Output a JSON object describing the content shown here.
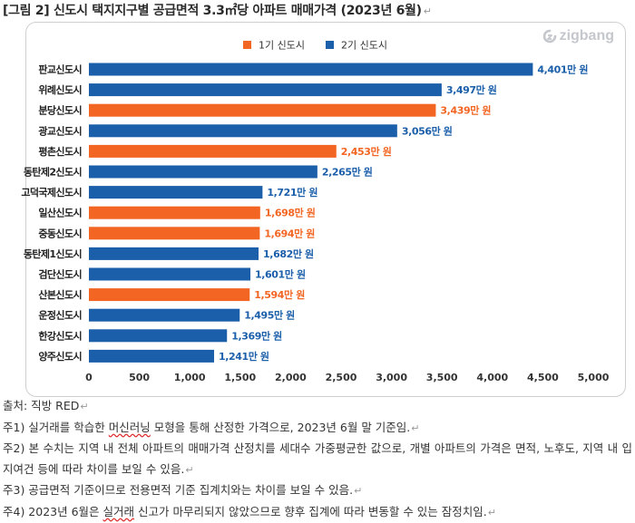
{
  "title": "[그림 2] 신도시 택지지구별 공급면적 3.3㎡당 아파트 매매가격 (2023년 6월)",
  "brand": "zigbang",
  "colors": {
    "gen1": "#f26522",
    "gen2": "#1b5faa",
    "axis_text": "#333333"
  },
  "chart_data": {
    "type": "bar",
    "orientation": "horizontal",
    "categories": [
      "판교신도시",
      "위례신도시",
      "분당신도시",
      "광교신도시",
      "평촌신도시",
      "동탄제2신도시",
      "고덕국제신도시",
      "일산신도시",
      "중동신도시",
      "동탄제1신도시",
      "검단신도시",
      "산본신도시",
      "운정신도시",
      "한강신도시",
      "양주신도시"
    ],
    "values": [
      4401,
      3497,
      3439,
      3056,
      2453,
      2265,
      1721,
      1698,
      1694,
      1682,
      1601,
      1594,
      1495,
      1369,
      1241
    ],
    "value_labels": [
      "4,401만 원",
      "3,497만 원",
      "3,439만 원",
      "3,056만 원",
      "2,453만 원",
      "2,265만 원",
      "1,721만 원",
      "1,698만 원",
      "1,694만 원",
      "1,682만 원",
      "1,601만 원",
      "1,594만 원",
      "1,495만 원",
      "1,369만 원",
      "1,241만 원"
    ],
    "group": [
      "2기",
      "2기",
      "1기",
      "2기",
      "1기",
      "2기",
      "2기",
      "1기",
      "1기",
      "2기",
      "2기",
      "1기",
      "2기",
      "2기",
      "2기"
    ],
    "legend": [
      {
        "key": "1기",
        "label": "1기 신도시"
      },
      {
        "key": "2기",
        "label": "2기 신도시"
      }
    ],
    "legend_position": "top-center",
    "xlim": [
      0,
      5000
    ],
    "xticks": [
      "0",
      "500",
      "1,000",
      "1,500",
      "2,000",
      "2,500",
      "3,000",
      "3,500",
      "4,000",
      "4,500",
      "5,000"
    ],
    "grid": false
  },
  "notes": [
    {
      "segments": [
        {
          "text": "출처: 직방 RED"
        }
      ]
    },
    {
      "segments": [
        {
          "text": "주1) 실거래를 학습한 "
        },
        {
          "text": "머신러닝",
          "wavy": true
        },
        {
          "text": " 모형을 통해 산정한 가격으로, 2023년 6월 말 기준임."
        }
      ]
    },
    {
      "segments": [
        {
          "text": "주2) 본 수치는 지역 내 전체 아파트의 매매가격 산정치를 세대수 가중평균한 값으로, 개별 아파트의 가격은 면적, 노후도, 지역 내 입지여건 등에 따라 차이를 보일 수 있음."
        }
      ]
    },
    {
      "segments": [
        {
          "text": "주3) 공급면적 기준이므로 전용면적 기준 집계치와는 차이를 보일 수 있음."
        }
      ]
    },
    {
      "segments": [
        {
          "text": "주4) 2023년 6월은 "
        },
        {
          "text": "실거래",
          "wavy": true
        },
        {
          "text": " 신고가 마무리되지 않았으므로 향후 집계에 따라 변동할 수 있는 잠정치임."
        }
      ]
    }
  ]
}
